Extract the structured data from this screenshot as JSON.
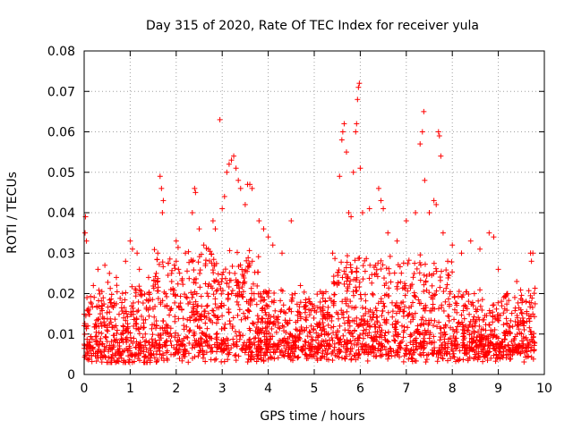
{
  "chart_data": {
    "type": "scatter",
    "title": "Day 315 of 2020, Rate Of TEC Index for receiver yula",
    "xlabel": "GPS time / hours",
    "ylabel": "ROTI / TECUs",
    "xlim": [
      0,
      10
    ],
    "ylim": [
      0,
      0.08
    ],
    "x_ticks": [
      "0",
      "1",
      "2",
      "3",
      "4",
      "5",
      "6",
      "7",
      "8",
      "9",
      "10"
    ],
    "y_ticks": [
      "0",
      "0.01",
      "0.02",
      "0.03",
      "0.04",
      "0.05",
      "0.06",
      "0.07",
      "0.08"
    ],
    "grid": true,
    "marker": "plus",
    "color": "#ff0000",
    "series": [
      {
        "name": "ROTI",
        "points": [
          [
            0.02,
            0.035
          ],
          [
            0.03,
            0.039
          ],
          [
            0.05,
            0.033
          ],
          [
            0.06,
            0.019
          ],
          [
            0.08,
            0.012
          ],
          [
            0.1,
            0.008
          ],
          [
            0.2,
            0.022
          ],
          [
            0.3,
            0.026
          ],
          [
            0.35,
            0.015
          ],
          [
            0.45,
            0.027
          ],
          [
            0.55,
            0.025
          ],
          [
            0.7,
            0.024
          ],
          [
            0.9,
            0.028
          ],
          [
            1.0,
            0.033
          ],
          [
            1.05,
            0.031
          ],
          [
            1.15,
            0.03
          ],
          [
            1.2,
            0.026
          ],
          [
            1.4,
            0.024
          ],
          [
            1.6,
            0.03
          ],
          [
            1.65,
            0.049
          ],
          [
            1.68,
            0.046
          ],
          [
            1.7,
            0.04
          ],
          [
            1.72,
            0.043
          ],
          [
            1.9,
            0.025
          ],
          [
            2.0,
            0.033
          ],
          [
            2.05,
            0.026
          ],
          [
            2.2,
            0.03
          ],
          [
            2.35,
            0.04
          ],
          [
            2.4,
            0.046
          ],
          [
            2.42,
            0.045
          ],
          [
            2.5,
            0.036
          ],
          [
            2.6,
            0.032
          ],
          [
            2.7,
            0.031
          ],
          [
            2.8,
            0.038
          ],
          [
            2.85,
            0.036
          ],
          [
            2.95,
            0.063
          ],
          [
            3.0,
            0.041
          ],
          [
            3.05,
            0.044
          ],
          [
            3.1,
            0.05
          ],
          [
            3.15,
            0.052
          ],
          [
            3.2,
            0.053
          ],
          [
            3.25,
            0.054
          ],
          [
            3.3,
            0.051
          ],
          [
            3.35,
            0.048
          ],
          [
            3.4,
            0.046
          ],
          [
            3.5,
            0.042
          ],
          [
            3.55,
            0.047
          ],
          [
            3.6,
            0.047
          ],
          [
            3.65,
            0.046
          ],
          [
            3.8,
            0.038
          ],
          [
            3.9,
            0.036
          ],
          [
            4.0,
            0.034
          ],
          [
            4.1,
            0.032
          ],
          [
            4.3,
            0.03
          ],
          [
            4.5,
            0.038
          ],
          [
            4.7,
            0.022
          ],
          [
            4.9,
            0.018
          ],
          [
            5.0,
            0.017
          ],
          [
            5.2,
            0.02
          ],
          [
            5.4,
            0.03
          ],
          [
            5.55,
            0.049
          ],
          [
            5.6,
            0.058
          ],
          [
            5.62,
            0.06
          ],
          [
            5.65,
            0.062
          ],
          [
            5.7,
            0.055
          ],
          [
            5.75,
            0.04
          ],
          [
            5.8,
            0.039
          ],
          [
            5.85,
            0.05
          ],
          [
            5.9,
            0.06
          ],
          [
            5.92,
            0.062
          ],
          [
            5.94,
            0.068
          ],
          [
            5.96,
            0.071
          ],
          [
            5.98,
            0.072
          ],
          [
            6.0,
            0.051
          ],
          [
            6.05,
            0.04
          ],
          [
            6.2,
            0.041
          ],
          [
            6.4,
            0.046
          ],
          [
            6.45,
            0.043
          ],
          [
            6.5,
            0.041
          ],
          [
            6.6,
            0.035
          ],
          [
            6.8,
            0.033
          ],
          [
            7.0,
            0.038
          ],
          [
            7.2,
            0.04
          ],
          [
            7.3,
            0.057
          ],
          [
            7.35,
            0.06
          ],
          [
            7.38,
            0.065
          ],
          [
            7.4,
            0.048
          ],
          [
            7.5,
            0.04
          ],
          [
            7.6,
            0.043
          ],
          [
            7.65,
            0.042
          ],
          [
            7.7,
            0.06
          ],
          [
            7.72,
            0.059
          ],
          [
            7.75,
            0.054
          ],
          [
            7.8,
            0.035
          ],
          [
            7.9,
            0.028
          ],
          [
            8.0,
            0.032
          ],
          [
            8.2,
            0.03
          ],
          [
            8.4,
            0.033
          ],
          [
            8.6,
            0.031
          ],
          [
            8.8,
            0.035
          ],
          [
            8.9,
            0.034
          ],
          [
            9.0,
            0.026
          ],
          [
            9.2,
            0.02
          ],
          [
            9.4,
            0.023
          ],
          [
            9.6,
            0.018
          ],
          [
            9.7,
            0.03
          ],
          [
            9.72,
            0.028
          ],
          [
            9.75,
            0.03
          ]
        ]
      }
    ],
    "background_density": [
      {
        "x_start": 0.0,
        "x_end": 0.3,
        "typical_min": 0.005,
        "typical_max": 0.02
      },
      {
        "x_start": 0.3,
        "x_end": 1.5,
        "typical_min": 0.004,
        "typical_max": 0.022
      },
      {
        "x_start": 1.5,
        "x_end": 3.8,
        "typical_min": 0.005,
        "typical_max": 0.03
      },
      {
        "x_start": 3.8,
        "x_end": 5.4,
        "typical_min": 0.005,
        "typical_max": 0.02
      },
      {
        "x_start": 5.4,
        "x_end": 8.0,
        "typical_min": 0.005,
        "typical_max": 0.028
      },
      {
        "x_start": 8.0,
        "x_end": 9.8,
        "typical_min": 0.005,
        "typical_max": 0.02
      }
    ]
  }
}
